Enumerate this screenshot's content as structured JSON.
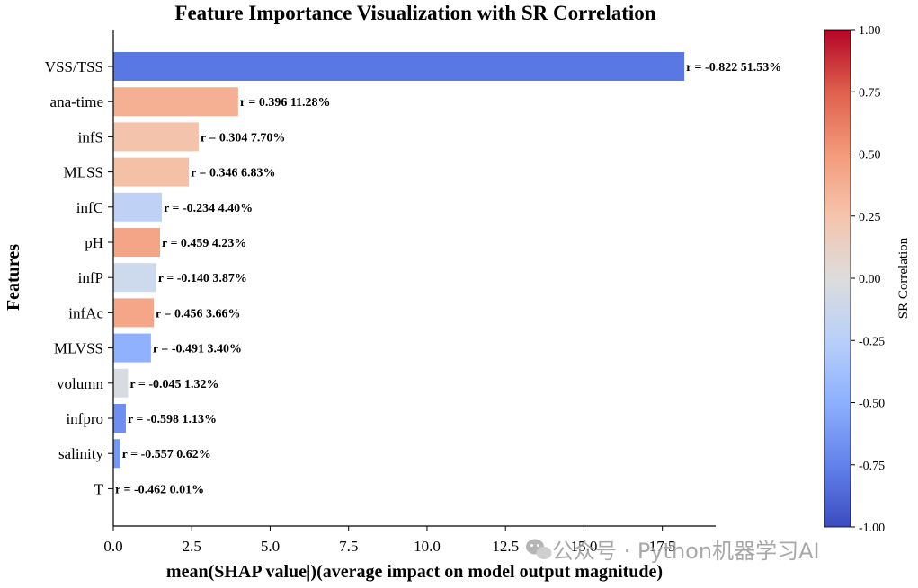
{
  "chart_data": {
    "type": "bar",
    "orientation": "horizontal",
    "title": "Feature Importance Visualization with SR Correlation",
    "xlabel": "mean(SHAP value|)(average impact on model output magnitude)",
    "ylabel": "Features",
    "xlim": [
      0,
      19.2
    ],
    "xticks": [
      "0.0",
      "2.5",
      "5.0",
      "7.5",
      "10.0",
      "12.5",
      "15.0",
      "17.5"
    ],
    "xtick_values": [
      0,
      2.5,
      5,
      7.5,
      10,
      12.5,
      15,
      17.5
    ],
    "categories": [
      "VSS/TSS",
      "ana-time",
      "infS",
      "MLSS",
      "infC",
      "pH",
      "infP",
      "infAc",
      "MLVSS",
      "volumn",
      "infpro",
      "salinity",
      "T"
    ],
    "values": [
      18.2,
      3.98,
      2.72,
      2.41,
      1.55,
      1.49,
      1.37,
      1.29,
      1.2,
      0.47,
      0.4,
      0.22,
      0.0
    ],
    "correlation": [
      -0.822,
      0.396,
      0.304,
      0.346,
      -0.234,
      0.459,
      -0.14,
      0.456,
      -0.491,
      -0.045,
      -0.598,
      -0.557,
      -0.462
    ],
    "bar_labels": [
      "r = -0.822 51.53%",
      "r = 0.396 11.28%",
      "r = 0.304 7.70%",
      "r = 0.346 6.83%",
      "r = -0.234 4.40%",
      "r = 0.459 4.23%",
      "r = -0.140 3.87%",
      "r = 0.456 3.66%",
      "r = -0.491 3.40%",
      "r = -0.045 1.32%",
      "r = -0.598 1.13%",
      "r = -0.557 0.62%",
      "r = -0.462 0.01%"
    ],
    "bar_colors": [
      "#5a78e3",
      "#f5b094",
      "#f3c3ab",
      "#f4c0a6",
      "#bfd2f6",
      "#f5a587",
      "#cdd9ec",
      "#f5a588",
      "#8fb1fe",
      "#d8dce2",
      "#6e8ff0",
      "#7597f6",
      "#8cafff"
    ],
    "colorbar": {
      "label": "SR Correlation",
      "range": [
        -1.0,
        1.0
      ],
      "ticks": [
        "1.00",
        "0.75",
        "0.50",
        "0.25",
        "0.00",
        "-0.25",
        "-0.50",
        "-0.75",
        "-1.00"
      ],
      "tick_values": [
        1.0,
        0.75,
        0.5,
        0.25,
        0.0,
        -0.25,
        -0.5,
        -0.75,
        -1.0
      ],
      "colormap": "coolwarm",
      "color_stops": [
        "#3b4cc0",
        "#6282ea",
        "#8db0fe",
        "#b8d0f9",
        "#dddcdc",
        "#f5c4ac",
        "#f49a7b",
        "#de604d",
        "#b40426"
      ]
    },
    "grid": false
  },
  "watermark": {
    "text": "公众号 · Python机器学习AI"
  }
}
